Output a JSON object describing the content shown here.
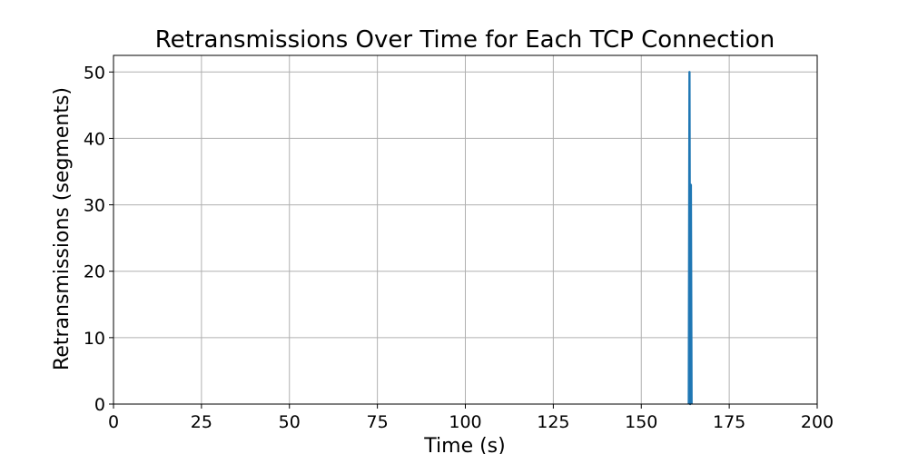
{
  "chart_data": {
    "type": "line",
    "title": "Retransmissions Over Time for Each TCP Connection",
    "xlabel": "Time (s)",
    "ylabel": "Retransmissions (segments)",
    "xlim": [
      0,
      200
    ],
    "ylim": [
      0,
      52.5
    ],
    "xticks": [
      0,
      25,
      50,
      75,
      100,
      125,
      150,
      175,
      200
    ],
    "yticks": [
      0,
      10,
      20,
      30,
      40,
      50
    ],
    "grid": true,
    "series": [
      {
        "color": "#1f77b4",
        "x": [
          163.5,
          163.7,
          163.9,
          164.1,
          164.3
        ],
        "y": [
          0,
          50,
          0,
          33,
          0
        ]
      }
    ]
  }
}
